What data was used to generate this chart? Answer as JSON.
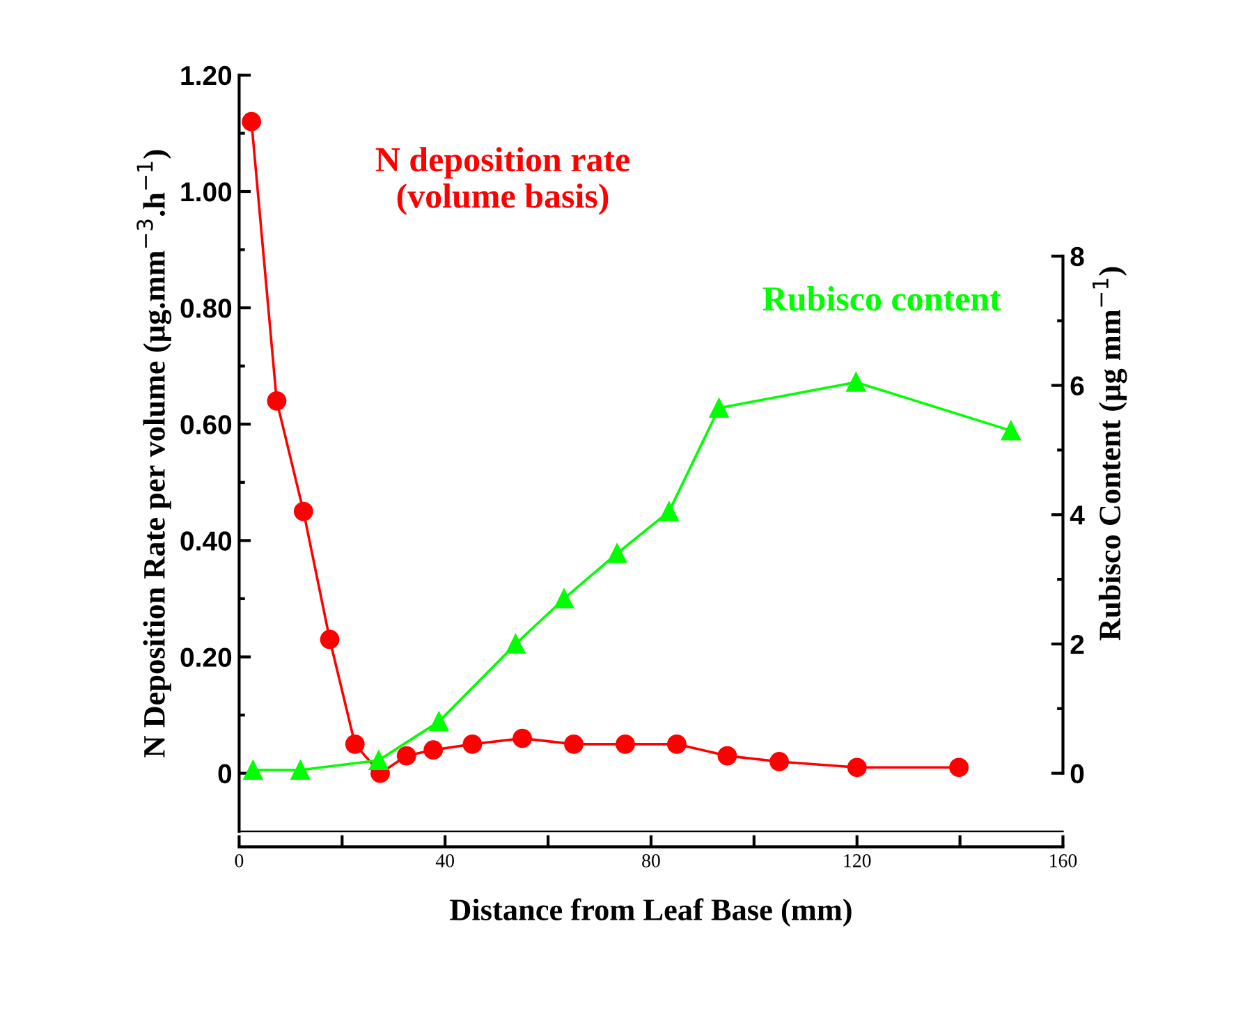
{
  "chart_data": {
    "type": "line",
    "xlabel": "Distance from Leaf Base (mm)",
    "ylabel": "N Deposition Rate per volume (µg.mm$^{−3}$.h$^{−1}$)",
    "y2label": "Rubisco Content (µg mm$^{−1}$)",
    "xlim": [
      0,
      160
    ],
    "xticks": [
      0,
      {
        "value": 20,
        "label": null
      },
      40,
      {
        "value": 60,
        "label": null
      },
      80,
      {
        "value": 100,
        "label": null
      },
      120,
      {
        "value": 140,
        "label": null
      },
      160
    ],
    "ylim": [
      -0.1,
      1.2
    ],
    "yticks": [
      {
        "value": 0,
        "label": "0"
      },
      {
        "value": 0.1,
        "label": null
      },
      {
        "value": 0.2,
        "label": "0.20"
      },
      {
        "value": 0.3,
        "label": null
      },
      {
        "value": 0.4,
        "label": "0.40"
      },
      {
        "value": 0.5,
        "label": null
      },
      {
        "value": 0.6,
        "label": "0.60"
      },
      {
        "value": 0.7,
        "label": null
      },
      {
        "value": 0.8,
        "label": "0.80"
      },
      {
        "value": 0.9,
        "label": null
      },
      {
        "value": 1.0,
        "label": "1.00"
      },
      {
        "value": 1.1,
        "label": null
      },
      {
        "value": 1.2,
        "label": "1.20"
      }
    ],
    "y2lim": [
      -0.9,
      10.8
    ],
    "y2ticks": [
      0,
      {
        "value": 1,
        "label": null
      },
      2,
      {
        "value": 3,
        "label": null
      },
      4,
      {
        "value": 5,
        "label": null
      },
      6,
      {
        "value": 7,
        "label": null
      },
      8
    ],
    "grid": false,
    "legend": false,
    "line_style": "solid",
    "series": [
      {
        "name": "N deposition rate\n(volume basis)",
        "color": "#ff0000",
        "marker": "circle",
        "x": [
          2.4,
          7.3,
          12.5,
          17.6,
          22.5,
          27.4,
          32.5,
          37.7,
          45.3,
          55,
          65,
          75,
          85,
          94.8,
          104.9,
          120,
          139.8
        ],
        "values": [
          1.12,
          0.64,
          0.45,
          0.23,
          0.05,
          0.0,
          0.03,
          0.04,
          0.05,
          0.06,
          0.05,
          0.05,
          0.05,
          0.03,
          0.02,
          0.01,
          0.01
        ]
      },
      {
        "name": "Rubisco content",
        "color": "#00ff00",
        "marker": "triangle",
        "axis": "y2",
        "x": [
          2.7,
          11.9,
          27.1,
          38.8,
          53.7,
          63.1,
          73.4,
          83.5,
          93.2,
          119.8,
          149.9
        ],
        "values": [
          0.05,
          0.05,
          0.2,
          0.8,
          2.0,
          2.7,
          3.4,
          4.05,
          5.65,
          6.05,
          5.3
        ]
      }
    ]
  }
}
